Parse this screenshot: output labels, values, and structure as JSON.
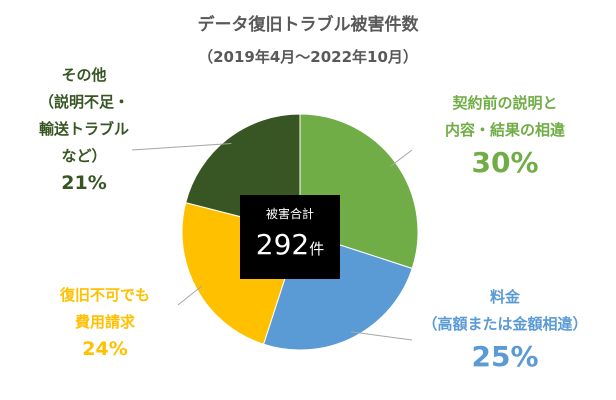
{
  "title": "データ復旧トラブル被害件数",
  "subtitle": "（2019年4月～2022年10月）",
  "center": {
    "caption": "被害合計",
    "total": "292",
    "unit": "件"
  },
  "chart_data": {
    "type": "pie",
    "start_angle_deg": 0,
    "direction": "clockwise",
    "slices": [
      {
        "label_lines": [
          "契約前の説明と",
          "内容・結果の相違"
        ],
        "value": 30,
        "display": "30%",
        "color": "#70ad47"
      },
      {
        "label_lines": [
          "料金",
          "（高額または金額相違）"
        ],
        "value": 25,
        "display": "25%",
        "color": "#5b9bd5"
      },
      {
        "label_lines": [
          "復旧不可でも",
          "費用請求"
        ],
        "value": 24,
        "display": "24%",
        "color": "#ffc000"
      },
      {
        "label_lines": [
          "その他",
          "（説明不足・",
          "輸送トラブル",
          "など）"
        ],
        "value": 21,
        "display": "21%",
        "color": "#375623"
      }
    ]
  }
}
